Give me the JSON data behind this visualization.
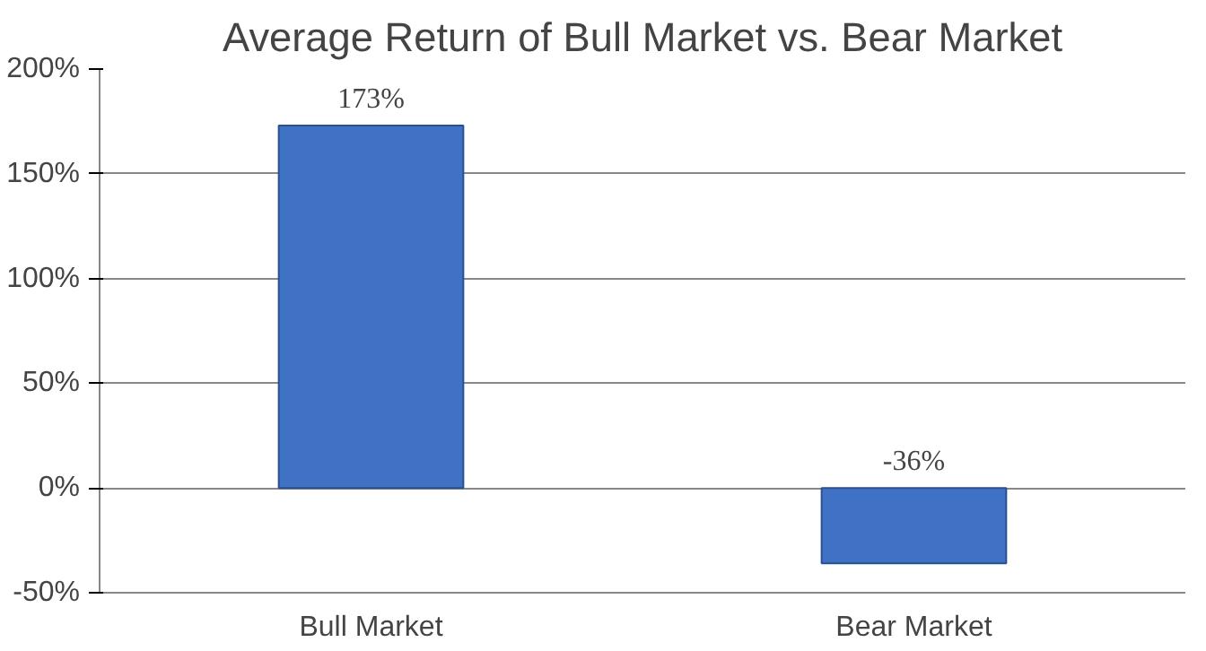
{
  "chart_data": {
    "type": "bar",
    "title": "Average Return of Bull Market vs. Bear Market",
    "categories": [
      "Bull Market",
      "Bear Market"
    ],
    "values": [
      173,
      -36
    ],
    "value_labels": [
      "173%",
      "-36%"
    ],
    "color": "#3f72c4",
    "ylim": [
      -50,
      200
    ],
    "yticks": [
      {
        "value": -50,
        "label": "-50%"
      },
      {
        "value": 0,
        "label": "0%"
      },
      {
        "value": 50,
        "label": "50%"
      },
      {
        "value": 100,
        "label": "100%"
      },
      {
        "value": 150,
        "label": "150%"
      },
      {
        "value": 200,
        "label": "200%"
      }
    ],
    "grid": "y"
  }
}
